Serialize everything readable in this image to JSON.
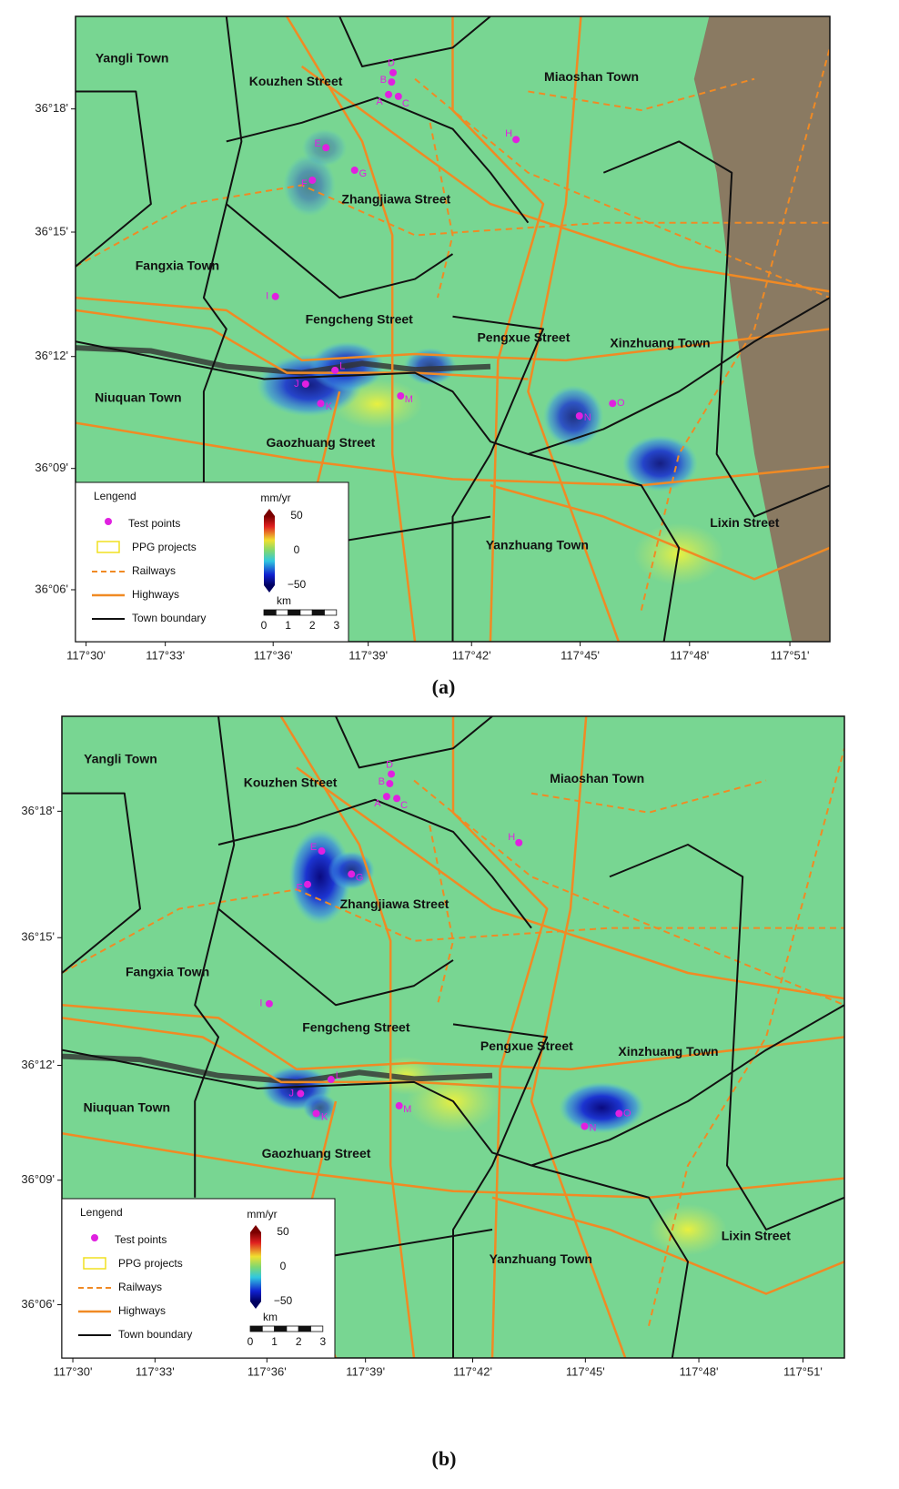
{
  "panels": [
    {
      "caption": "(a)",
      "towns": [
        "Yangli Town",
        "Kouzhen Street",
        "Miaoshan Town",
        "Zhangjiawa Street",
        "Fangxia Town",
        "Fengcheng Street",
        "Pengxue Street",
        "Xinzhuang Town",
        "Niuquan Town",
        "Gaozhuang Street",
        "Lixin Street",
        "Yanzhuang Town"
      ],
      "points": [
        "A",
        "B",
        "C",
        "D",
        "E",
        "F",
        "G",
        "H",
        "I",
        "J",
        "K",
        "L",
        "M",
        "N",
        "O"
      ],
      "lat_ticks": [
        "36°18'",
        "36°15'",
        "36°12'",
        "36°09'",
        "36°06'"
      ],
      "lon_ticks": [
        "117°30'",
        "117°33'",
        "117°36'",
        "117°39'",
        "117°42'",
        "117°45'",
        "117°48'",
        "117°51'"
      ],
      "legend": {
        "title": "Lengend",
        "items": [
          "Test points",
          "PPG projects",
          "Railways",
          "Highways",
          "Town boundary"
        ],
        "colorbar": {
          "unit": "mm/yr",
          "ticks": [
            "50",
            "0",
            "−50"
          ]
        },
        "scale": {
          "unit": "km",
          "ticks": [
            "0",
            "1",
            "2",
            "3"
          ]
        }
      }
    },
    {
      "caption": "(b)",
      "towns": [
        "Yangli Town",
        "Kouzhen Street",
        "Miaoshan Town",
        "Zhangjiawa Street",
        "Fangxia Town",
        "Fengcheng Street",
        "Pengxue Street",
        "Xinzhuang Town",
        "Niuquan Town",
        "Gaozhuang Street",
        "Lixin Street",
        "Yanzhuang Town"
      ],
      "points": [
        "A",
        "B",
        "C",
        "D",
        "E",
        "F",
        "G",
        "H",
        "I",
        "J",
        "K",
        "L",
        "M",
        "N",
        "O"
      ],
      "lat_ticks": [
        "36°18'",
        "36°15'",
        "36°12'",
        "36°09'",
        "36°06'"
      ],
      "lon_ticks": [
        "117°30'",
        "117°33'",
        "117°36'",
        "117°39'",
        "117°42'",
        "117°45'",
        "117°48'",
        "117°51'"
      ],
      "legend": {
        "title": "Lengend",
        "items": [
          "Test points",
          "PPG projects",
          "Railways",
          "Highways",
          "Town boundary"
        ],
        "colorbar": {
          "unit": "mm/yr",
          "ticks": [
            "50",
            "0",
            "−50"
          ]
        },
        "scale": {
          "unit": "km",
          "ticks": [
            "0",
            "1",
            "2",
            "3"
          ]
        }
      }
    }
  ]
}
